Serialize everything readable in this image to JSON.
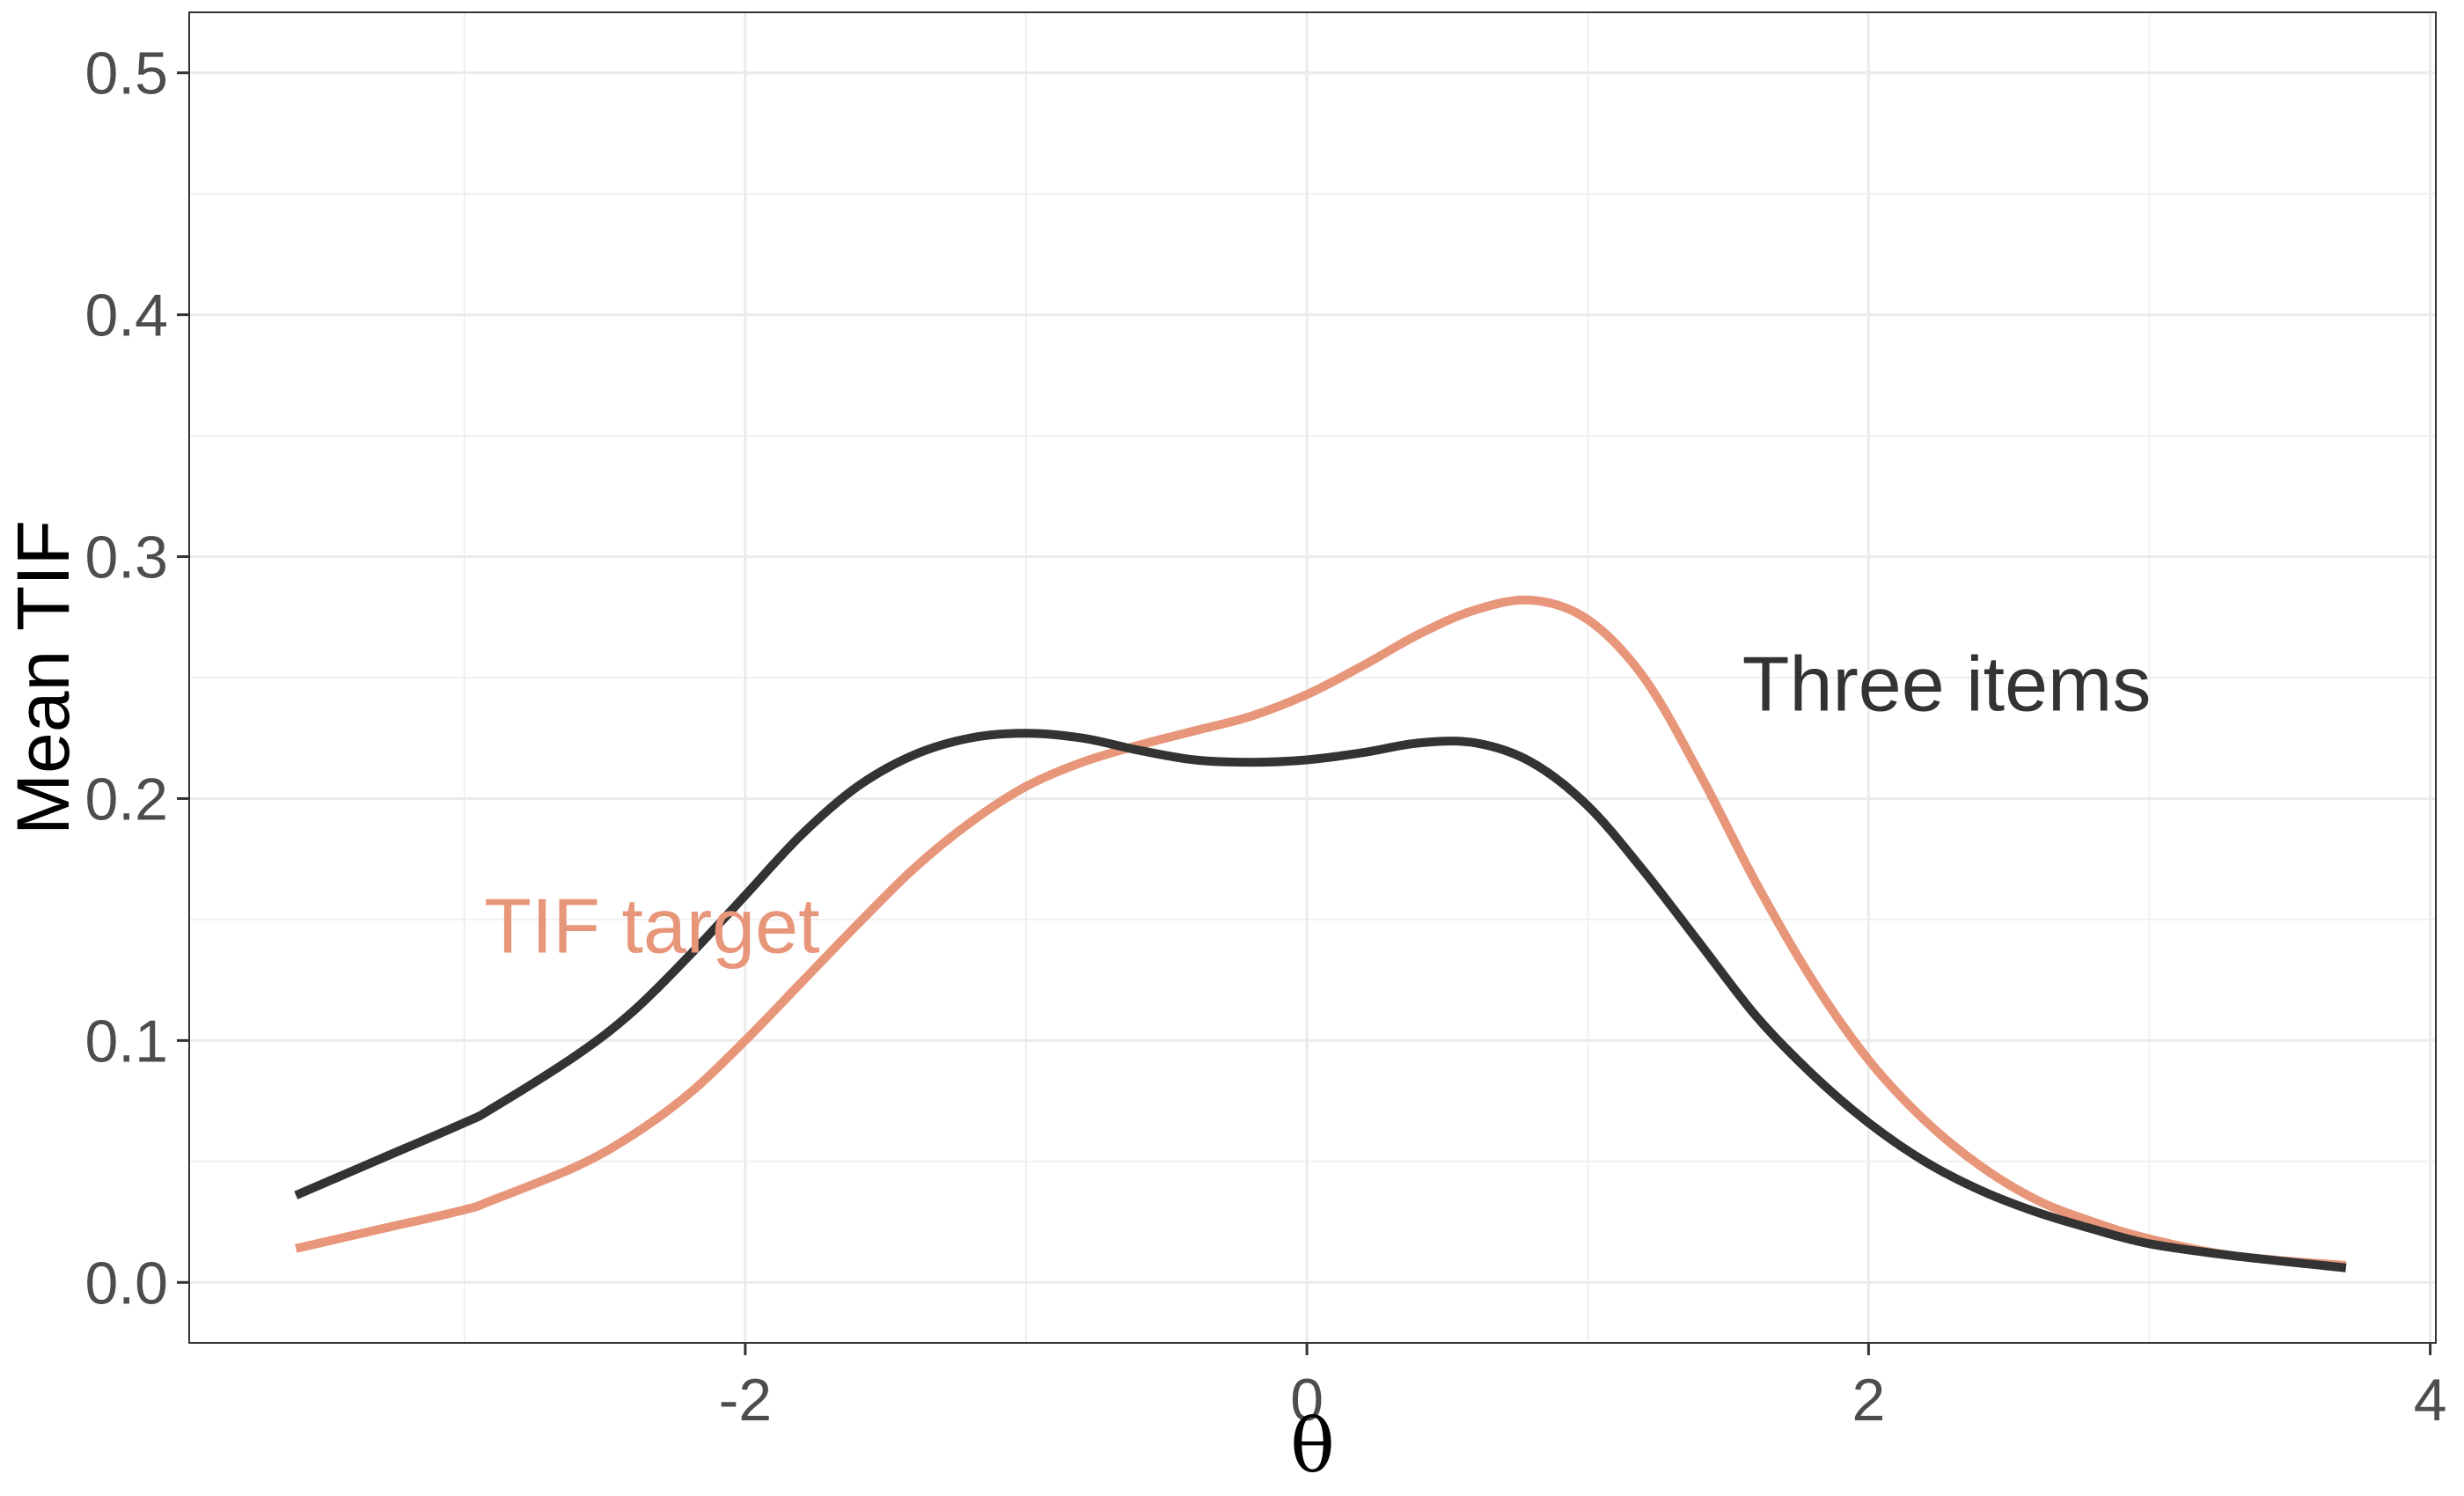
{
  "chart_data": {
    "type": "line",
    "title": "",
    "xlabel": "θ",
    "ylabel": "Mean TIF",
    "xlim": [
      -3.98,
      4.02
    ],
    "ylim": [
      -0.025,
      0.525
    ],
    "x_ticks": [
      -2,
      0,
      2,
      4
    ],
    "x_tick_labels": [
      "-2",
      "0",
      "2",
      "4"
    ],
    "y_ticks": [
      0.0,
      0.1,
      0.2,
      0.3,
      0.4,
      0.5
    ],
    "y_tick_labels": [
      "0.0",
      "0.1",
      "0.2",
      "0.3",
      "0.4",
      "0.5"
    ],
    "grid": true,
    "series": [
      {
        "name": "Three items",
        "color": "#333333",
        "x": [
          -3.6,
          -3.3,
          -3.0,
          -2.9,
          -2.6,
          -2.4,
          -2.2,
          -2.0,
          -1.8,
          -1.6,
          -1.4,
          -1.2,
          -1.0,
          -0.8,
          -0.6,
          -0.4,
          -0.2,
          0.0,
          0.2,
          0.4,
          0.6,
          0.8,
          1.0,
          1.2,
          1.4,
          1.6,
          1.8,
          2.0,
          2.2,
          2.4,
          2.6,
          2.8,
          3.0,
          3.3,
          3.7
        ],
        "values": [
          0.036,
          0.051,
          0.066,
          0.072,
          0.094,
          0.112,
          0.135,
          0.16,
          0.185,
          0.205,
          0.218,
          0.225,
          0.227,
          0.225,
          0.22,
          0.216,
          0.215,
          0.216,
          0.219,
          0.223,
          0.223,
          0.215,
          0.197,
          0.17,
          0.14,
          0.11,
          0.086,
          0.066,
          0.05,
          0.038,
          0.029,
          0.022,
          0.016,
          0.011,
          0.006
        ]
      },
      {
        "name": "TIF target",
        "color": "#E8967A",
        "x": [
          -3.6,
          -3.3,
          -3.0,
          -2.9,
          -2.6,
          -2.4,
          -2.2,
          -2.0,
          -1.8,
          -1.6,
          -1.4,
          -1.2,
          -1.0,
          -0.8,
          -0.6,
          -0.4,
          -0.2,
          0.0,
          0.2,
          0.4,
          0.6,
          0.8,
          1.0,
          1.2,
          1.4,
          1.6,
          1.8,
          2.0,
          2.2,
          2.4,
          2.6,
          2.8,
          3.0,
          3.3,
          3.7
        ],
        "values": [
          0.014,
          0.022,
          0.03,
          0.034,
          0.048,
          0.061,
          0.078,
          0.1,
          0.124,
          0.148,
          0.171,
          0.19,
          0.205,
          0.215,
          0.222,
          0.228,
          0.234,
          0.243,
          0.255,
          0.268,
          0.278,
          0.282,
          0.274,
          0.25,
          0.21,
          0.165,
          0.125,
          0.092,
          0.067,
          0.048,
          0.034,
          0.025,
          0.018,
          0.011,
          0.007
        ]
      }
    ],
    "annotations": [
      {
        "text": "Three items",
        "x": 1.55,
        "y": 0.248,
        "color": "#333333"
      },
      {
        "text": "TIF target",
        "x": -2.93,
        "y": 0.148,
        "color": "#E8967A"
      }
    ]
  }
}
